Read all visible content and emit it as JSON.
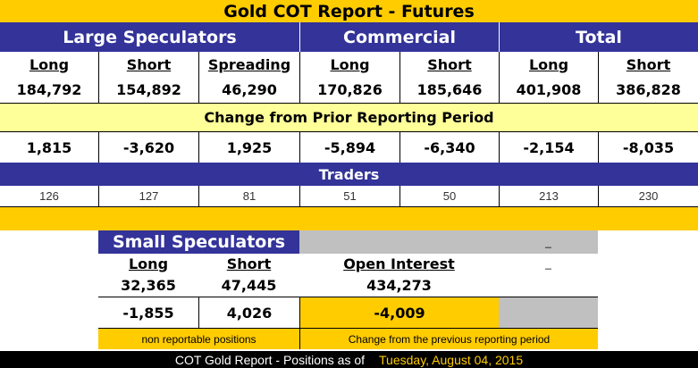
{
  "title": "Gold COT Report - Futures",
  "groups": {
    "large": "Large Speculators",
    "commercial": "Commercial",
    "total": "Total"
  },
  "columns": [
    "Long",
    "Short",
    "Spreading",
    "Long",
    "Short",
    "Long",
    "Short"
  ],
  "positions": [
    "184,792",
    "154,892",
    "46,290",
    "170,826",
    "185,646",
    "401,908",
    "386,828"
  ],
  "change_title": "Change from Prior Reporting Period",
  "changes": [
    "1,815",
    "-3,620",
    "1,925",
    "-5,894",
    "-6,340",
    "-2,154",
    "-8,035"
  ],
  "traders_title": "Traders",
  "traders": [
    "126",
    "127",
    "81",
    "51",
    "50",
    "213",
    "230"
  ],
  "small": {
    "title": "Small Speculators",
    "long_label": "Long",
    "short_label": "Short",
    "long": "32,365",
    "short": "47,445",
    "long_change": "-1,855",
    "short_change": "4,026",
    "note": "non reportable positions",
    "dash1": "_",
    "dash2": "_"
  },
  "open_interest": {
    "label": "Open Interest",
    "value": "434,273",
    "change": "-4,009",
    "note": "Change from the previous reporting period"
  },
  "footer": {
    "label": "COT Gold Report - Positions as of",
    "date": "Tuesday, August 04, 2015"
  }
}
